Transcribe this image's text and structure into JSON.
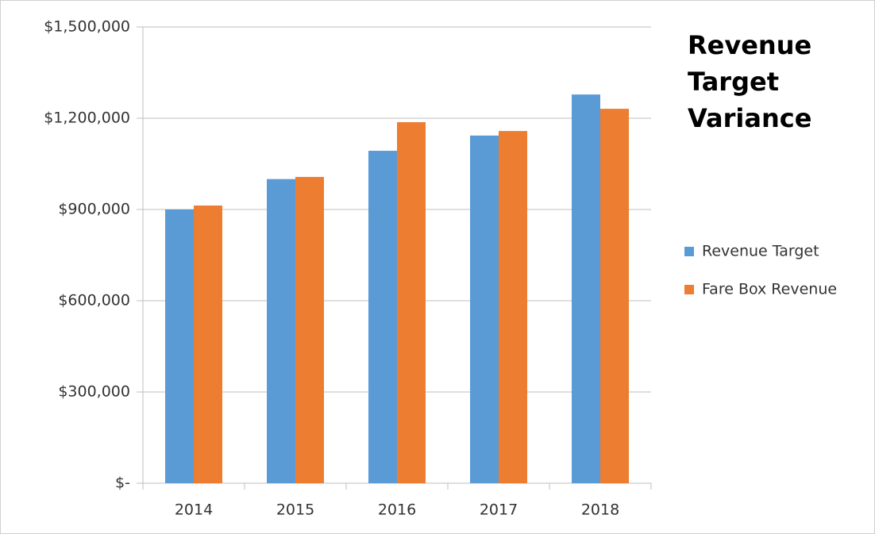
{
  "chart_data": {
    "type": "bar",
    "title": "Revenue Target Variance",
    "categories": [
      "2014",
      "2015",
      "2016",
      "2017",
      "2018"
    ],
    "series": [
      {
        "name": "Revenue Target",
        "color": "#5b9bd5",
        "values": [
          900000,
          1000000,
          1093000,
          1143000,
          1278000
        ]
      },
      {
        "name": "Fare Box Revenue",
        "color": "#ed7d31",
        "values": [
          913000,
          1007000,
          1187000,
          1158000,
          1231000
        ]
      }
    ],
    "ylim": [
      0,
      1500000
    ],
    "yticks": [
      {
        "value": 0,
        "label": "$-"
      },
      {
        "value": 300000,
        "label": "$300,000"
      },
      {
        "value": 600000,
        "label": "$600,000"
      },
      {
        "value": 900000,
        "label": "$900,000"
      },
      {
        "value": 1200000,
        "label": "$1,200,000"
      },
      {
        "value": 1500000,
        "label": "$1,500,000"
      }
    ],
    "grid": true,
    "legend": "right"
  }
}
